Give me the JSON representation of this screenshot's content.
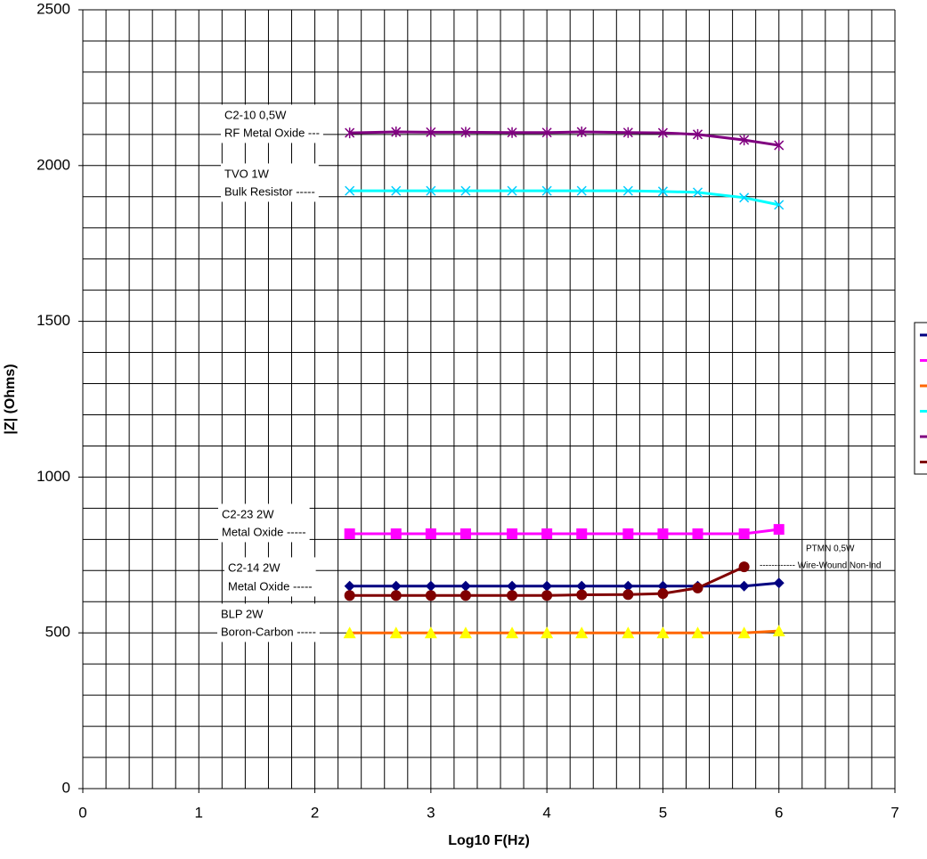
{
  "chart_data": {
    "type": "line",
    "x_label": "Log10 F(Hz)",
    "y_label": "|Z| (Ohms)",
    "x": [
      2.3,
      2.7,
      3,
      3.3,
      3.7,
      4,
      4.3,
      4.7,
      5,
      5.3,
      5.7,
      6
    ],
    "series": [
      {
        "color": "#000080",
        "marker": "diamond",
        "marker_color": "#000080",
        "values": [
          650,
          650,
          650,
          650,
          650,
          650,
          650,
          650,
          650,
          650,
          650,
          660
        ]
      },
      {
        "color": "#ff00ff",
        "marker": "square",
        "marker_color": "#ff00ff",
        "values": [
          818,
          818,
          818,
          818,
          818,
          818,
          818,
          818,
          818,
          818,
          818,
          832
        ]
      },
      {
        "color": "#ff6600",
        "marker": "triangle",
        "marker_color": "#ffff00",
        "values": [
          500,
          500,
          500,
          500,
          500,
          500,
          500,
          500,
          500,
          500,
          500,
          506
        ]
      },
      {
        "color": "#00ffff",
        "marker": "x",
        "marker_color": "#00ccff",
        "values": [
          1919,
          1919,
          1919,
          1919,
          1919,
          1919,
          1919,
          1919,
          1917,
          1914,
          1897,
          1874
        ]
      },
      {
        "color": "#800080",
        "marker": "asterisk",
        "marker_color": "#800080",
        "values": [
          2105,
          2108,
          2107,
          2107,
          2106,
          2106,
          2108,
          2106,
          2105,
          2100,
          2082,
          2065
        ]
      },
      {
        "color": "#800000",
        "marker": "circle",
        "marker_color": "#800000",
        "values": [
          620,
          620,
          620,
          620,
          620,
          620,
          622,
          623,
          626,
          644,
          712,
          null
        ]
      }
    ],
    "annotations": [
      {
        "lines": [
          "C2-10 0,5W",
          "RF Metal Oxide ---"
        ]
      },
      {
        "lines": [
          "TVO 1W",
          "Bulk Resistor -----"
        ]
      },
      {
        "lines": [
          "C2-23 2W",
          "Metal Oxide -----"
        ]
      },
      {
        "lines": [
          "C2-14 2W",
          "Metal Oxide -----"
        ]
      },
      {
        "lines": [
          "BLP 2W",
          "Boron-Carbon -----"
        ]
      },
      {
        "lines": [
          "PTMN 0,5W",
          "------------ Wire-Wound Non-Ind"
        ]
      }
    ],
    "xlim": [
      0,
      7
    ],
    "xticks": [
      0,
      1,
      2,
      3,
      4,
      5,
      6,
      7
    ],
    "ylim": [
      0,
      2500
    ],
    "yticks": [
      0,
      500,
      1000,
      1500,
      2000,
      2500
    ],
    "grid": true,
    "minor_grid": true,
    "legend": "right"
  }
}
